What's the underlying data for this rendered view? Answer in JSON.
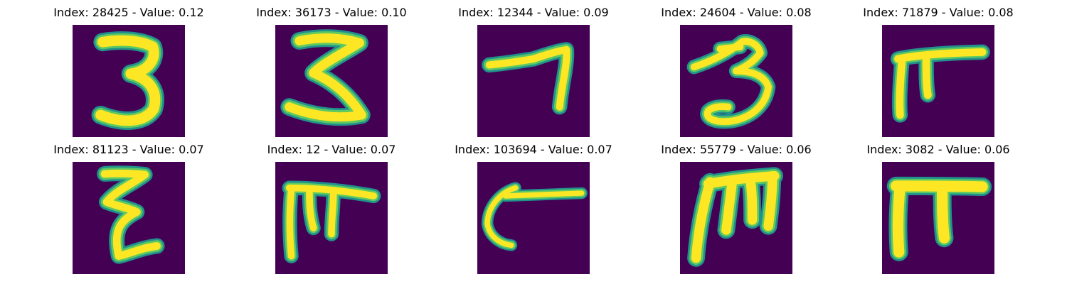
{
  "colors": {
    "background": "#440154",
    "outer_glow": "#21918c",
    "mid_glow": "#5ec962",
    "stroke_core": "#fde725"
  },
  "panels": [
    {
      "index": "28425",
      "value": "0.12",
      "title": "Index: 28425 - Value: 0.12",
      "glyph": "three-upright"
    },
    {
      "index": "36173",
      "value": "0.10",
      "title": "Index: 36173 - Value: 0.10",
      "glyph": "three-zigzag"
    },
    {
      "index": "12344",
      "value": "0.09",
      "title": "Index: 12344 - Value: 0.09",
      "glyph": "seven-shaped"
    },
    {
      "index": "24604",
      "value": "0.08",
      "title": "Index: 24604 - Value: 0.08",
      "glyph": "three-curly"
    },
    {
      "index": "71879",
      "value": "0.08",
      "title": "Index: 71879 - Value: 0.08",
      "glyph": "pi-shaped"
    },
    {
      "index": "81123",
      "value": "0.07",
      "title": "Index: 81123 - Value: 0.07",
      "glyph": "z-shaped"
    },
    {
      "index": "12",
      "value": "0.07",
      "title": "Index: 12 - Value: 0.07",
      "glyph": "pi-shaped-thin"
    },
    {
      "index": "103694",
      "value": "0.07",
      "title": "Index: 103694 - Value: 0.07",
      "glyph": "c-with-line"
    },
    {
      "index": "55779",
      "value": "0.06",
      "title": "Index: 55779 - Value: 0.06",
      "glyph": "m-shaped"
    },
    {
      "index": "3082",
      "value": "0.06",
      "title": "Index: 3082 - Value: 0.06",
      "glyph": "pi-shaped-bold"
    }
  ]
}
